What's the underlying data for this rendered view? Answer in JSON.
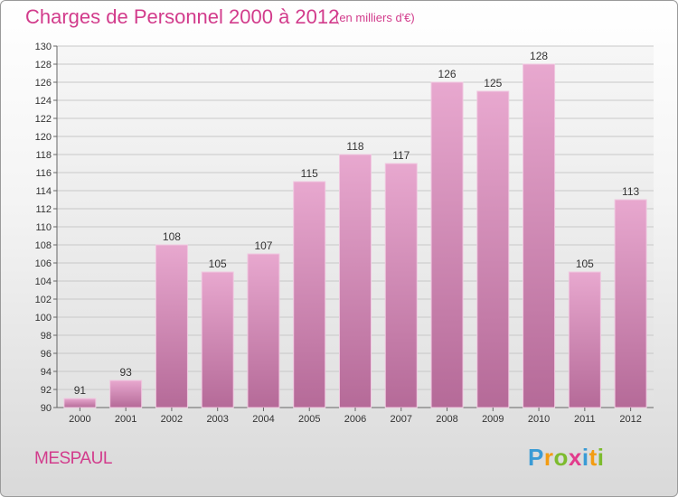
{
  "chart_data": {
    "type": "bar",
    "title": "Charges de Personnel 2000 à 2012",
    "subtitle": "(en milliers d'€)",
    "categories": [
      "2000",
      "2001",
      "2002",
      "2003",
      "2004",
      "2005",
      "2006",
      "2007",
      "2008",
      "2009",
      "2010",
      "2011",
      "2012"
    ],
    "values": [
      91,
      93,
      108,
      105,
      107,
      115,
      118,
      117,
      126,
      125,
      128,
      105,
      113
    ],
    "ylim": [
      90,
      130
    ],
    "yticks": [
      90,
      92,
      94,
      96,
      98,
      100,
      102,
      104,
      106,
      108,
      110,
      112,
      114,
      116,
      118,
      120,
      122,
      124,
      126,
      128,
      130
    ],
    "grid": true,
    "bar_color": "#d07aac",
    "label_color": "#333333"
  },
  "footer": {
    "commune": "MESPAUL"
  },
  "logo": {
    "letters": [
      {
        "ch": "P",
        "color": "#3a9bd5"
      },
      {
        "ch": "r",
        "color": "#f39c12"
      },
      {
        "ch": "o",
        "color": "#7dbb2e"
      },
      {
        "ch": "x",
        "color": "#e23c8c"
      },
      {
        "ch": "i",
        "color": "#3a9bd5"
      },
      {
        "ch": "t",
        "color": "#f39c12"
      },
      {
        "ch": "i",
        "color": "#7dbb2e"
      }
    ]
  }
}
